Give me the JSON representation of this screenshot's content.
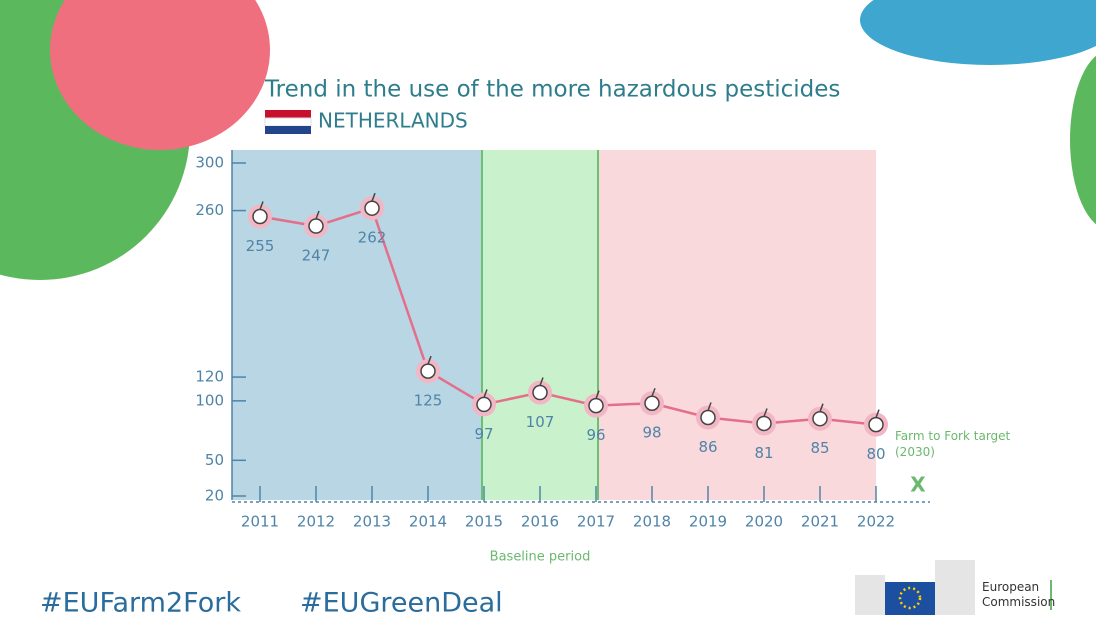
{
  "chart_data": {
    "type": "line",
    "title": "Trend in the use of the more hazardous pesticides",
    "subtitle": "NETHERLANDS",
    "categories": [
      "2011",
      "2012",
      "2013",
      "2014",
      "2015",
      "2016",
      "2017",
      "2018",
      "2019",
      "2020",
      "2021",
      "2022"
    ],
    "series": [
      {
        "name": "Netherlands",
        "color": "#e46f8a",
        "values": [
          255,
          247,
          262,
          125,
          97,
          107,
          96,
          98,
          86,
          81,
          85,
          80
        ]
      }
    ],
    "ylim": [
      20,
      300
    ],
    "yticks": [
      20,
      50,
      100,
      120,
      260,
      300
    ],
    "period_label": "Baseline period",
    "target": {
      "label": "Farm to Fork target (2030)",
      "marker": "X"
    },
    "hashtags": [
      "#EUFarm2Fork",
      "#EUGreenDeal"
    ],
    "logo": "European Commission"
  }
}
